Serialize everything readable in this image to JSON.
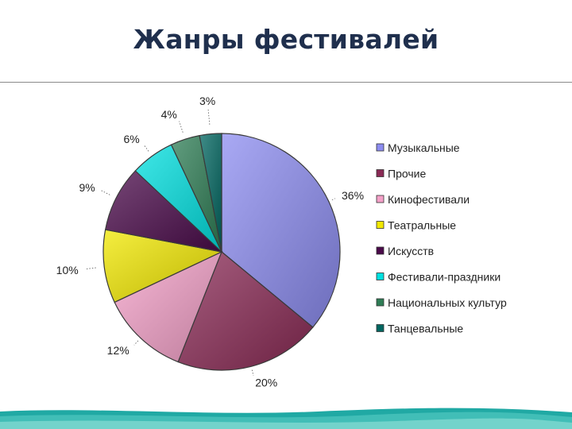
{
  "page": {
    "title": "Жанры фестивалей"
  },
  "chart_data": {
    "type": "pie",
    "title": "",
    "categories": [
      "Музыкальные",
      "Прочие",
      "Кинофестивали",
      "Театральные",
      "Искусств",
      "Фестивали-праздники",
      "Национальных культур",
      "Танцевальные"
    ],
    "values": [
      36,
      20,
      12,
      10,
      9,
      6,
      4,
      3
    ],
    "labels": [
      "36%",
      "20%",
      "12%",
      "10%",
      "9%",
      "6%",
      "4%",
      "3%"
    ],
    "colors": [
      "#8c8cf0",
      "#8a2a55",
      "#f4a0c8",
      "#f2e800",
      "#4a0a4a",
      "#00e0e0",
      "#2e7d55",
      "#006660"
    ],
    "legend_position": "right",
    "start": "12 o'clock, clockwise"
  }
}
